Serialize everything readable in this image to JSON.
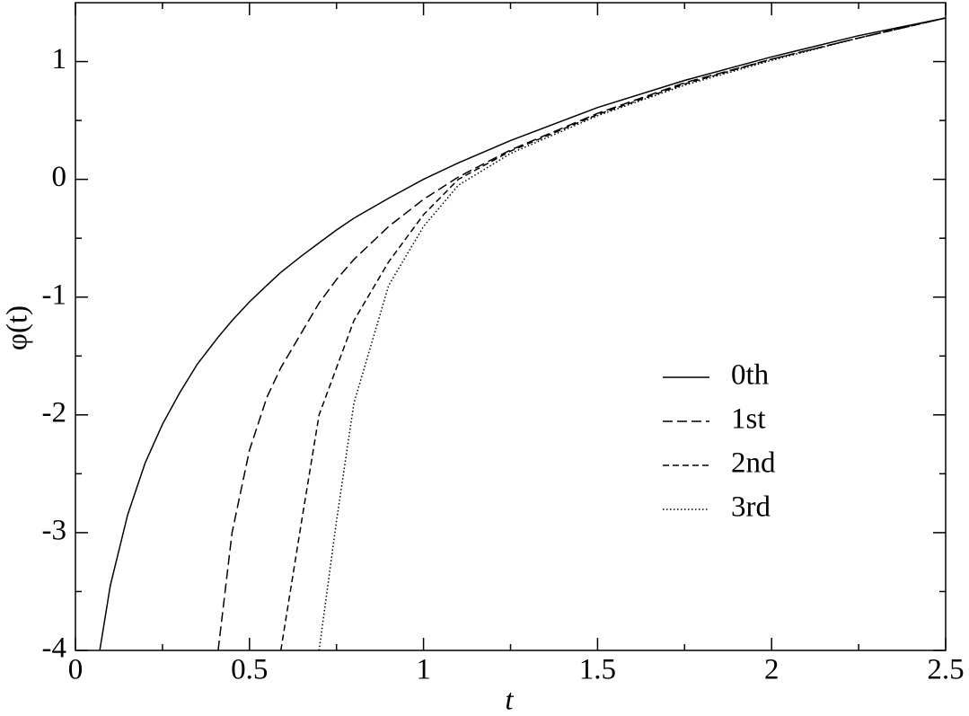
{
  "chart_data": {
    "type": "line",
    "x_label": "t",
    "y_label": "φ(t)",
    "xlim": [
      0,
      2.5
    ],
    "ylim": [
      -4,
      1.5
    ],
    "xticks": [
      0,
      0.5,
      1,
      1.5,
      2,
      2.5
    ],
    "yticks": [
      -4,
      -3,
      -2,
      -1,
      0,
      1
    ],
    "xticks_minor": [
      0.25,
      0.75,
      1.25,
      1.75,
      2.25
    ],
    "yticks_minor": [
      -3.5,
      -2.5,
      -1.5,
      -0.5,
      0.5
    ],
    "legend": "lower right",
    "x": [
      0.07,
      0.1,
      0.15,
      0.2,
      0.25,
      0.3,
      0.35,
      0.41,
      0.45,
      0.5,
      0.55,
      0.59,
      0.65,
      0.7,
      0.75,
      0.8,
      0.9,
      1.0,
      1.1,
      1.25,
      1.5,
      1.75,
      2.0,
      2.25,
      2.5
    ],
    "series": [
      {
        "name": "0th",
        "color": "#000000",
        "linestyle": "solid",
        "values": [
          -4.0,
          -3.45,
          -2.85,
          -2.41,
          -2.08,
          -1.81,
          -1.57,
          -1.34,
          -1.2,
          -1.04,
          -0.9,
          -0.79,
          -0.65,
          -0.54,
          -0.43,
          -0.33,
          -0.16,
          0,
          0.14,
          0.33,
          0.61,
          0.84,
          1.04,
          1.22,
          1.37
        ]
      },
      {
        "name": "1st",
        "color": "#000000",
        "linestyle": "longdash",
        "values": [
          null,
          null,
          null,
          null,
          null,
          null,
          null,
          -4.0,
          -3.0,
          -2.3,
          -1.85,
          -1.6,
          -1.3,
          -1.05,
          -0.85,
          -0.68,
          -0.4,
          -0.17,
          0.02,
          0.25,
          0.56,
          0.82,
          1.02,
          1.2,
          1.37
        ]
      },
      {
        "name": "2nd",
        "color": "#000000",
        "linestyle": "dashed",
        "values": [
          null,
          null,
          null,
          null,
          null,
          null,
          null,
          null,
          null,
          null,
          null,
          -4.0,
          -2.9,
          -2.0,
          -1.6,
          -1.2,
          -0.7,
          -0.3,
          0,
          0.24,
          0.55,
          0.81,
          1.02,
          1.2,
          1.37
        ]
      },
      {
        "name": "3rd",
        "color": "#000000",
        "linestyle": "dotted",
        "values": [
          null,
          null,
          null,
          null,
          null,
          null,
          null,
          null,
          null,
          null,
          null,
          null,
          null,
          -4.0,
          -2.9,
          -1.9,
          -0.9,
          -0.4,
          -0.05,
          0.22,
          0.54,
          0.8,
          1.01,
          1.2,
          1.37
        ]
      }
    ]
  }
}
